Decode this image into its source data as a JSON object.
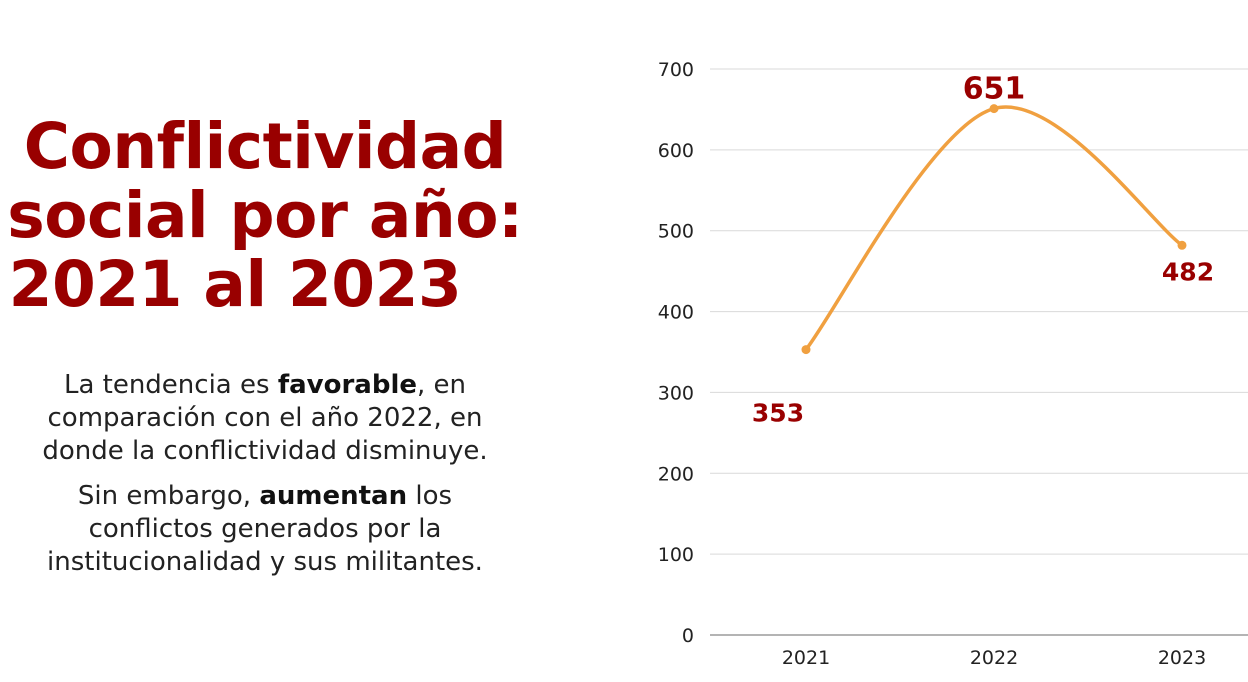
{
  "title": {
    "line1": "Conflictividad",
    "line2": "social por año:",
    "line3": "2021 al 2023"
  },
  "paragraph1": {
    "pre": "La tendencia es ",
    "bold": "favorable",
    "post1": ", en",
    "line2": "comparación con el año 2022, en",
    "line3": "donde la conflictividad disminuye."
  },
  "paragraph2": {
    "pre": "Sin embargo, ",
    "bold": "aumentan",
    "post1": " los",
    "line2": "conflictos generados por la",
    "line3": "institucionalidad y sus militantes."
  },
  "chart_data": {
    "type": "line",
    "categories": [
      "2021",
      "2022",
      "2023"
    ],
    "values": [
      353,
      651,
      482
    ],
    "data_labels": [
      "353",
      "651",
      "482"
    ],
    "yticks": [
      "0",
      "100",
      "200",
      "300",
      "400",
      "500",
      "600",
      "700"
    ],
    "ylim": [
      0,
      700
    ],
    "grid": true,
    "smooth": true,
    "line_color": "#F0A040",
    "label_color": "#990000",
    "title": "",
    "xlabel": "",
    "ylabel": ""
  }
}
